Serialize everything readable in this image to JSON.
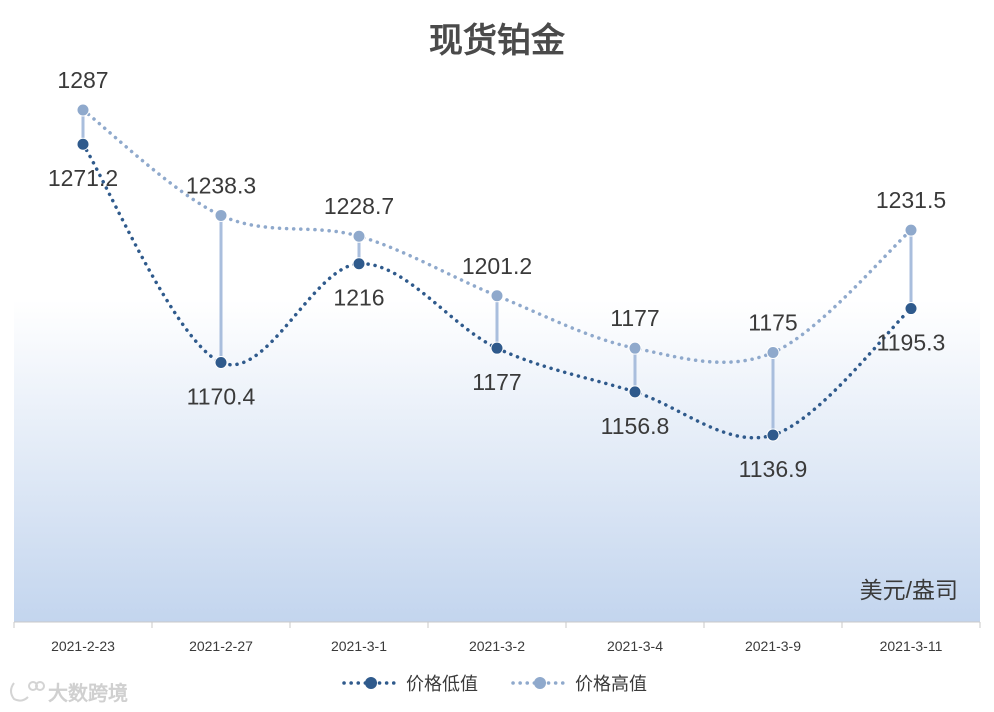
{
  "chart_data": {
    "type": "line",
    "title": "现货铂金",
    "unit_label": "美元/盎司",
    "categories": [
      "2021-2-23",
      "2021-2-27",
      "2021-3-1",
      "2021-3-2",
      "2021-3-4",
      "2021-3-9",
      "2021-3-11"
    ],
    "series": [
      {
        "name": "价格低值",
        "values": [
          1271.2,
          1170.4,
          1216,
          1177,
          1156.8,
          1136.9,
          1195.3
        ],
        "value_labels": [
          "1271.2",
          "1170.4",
          "1216",
          "1177",
          "1156.8",
          "1136.9",
          "1195.3"
        ],
        "color": "#2f5a8c",
        "label_position": "below"
      },
      {
        "name": "价格高值",
        "values": [
          1287,
          1238.3,
          1228.7,
          1201.2,
          1177,
          1175,
          1231.5
        ],
        "value_labels": [
          "1287",
          "1238.3",
          "1228.7",
          "1201.2",
          "1177",
          "1175",
          "1231.5"
        ],
        "color": "#8fa9cc",
        "label_position": "above"
      }
    ],
    "high_low_lines": true,
    "high_low_line_color": "#a9bedd",
    "smooth": true,
    "line_style": "dotted",
    "legend_position": "bottom",
    "background_gradient": [
      "#ffffff",
      "#c3d5ee"
    ],
    "grid": false
  },
  "watermark": {
    "text": "大数跨境"
  }
}
